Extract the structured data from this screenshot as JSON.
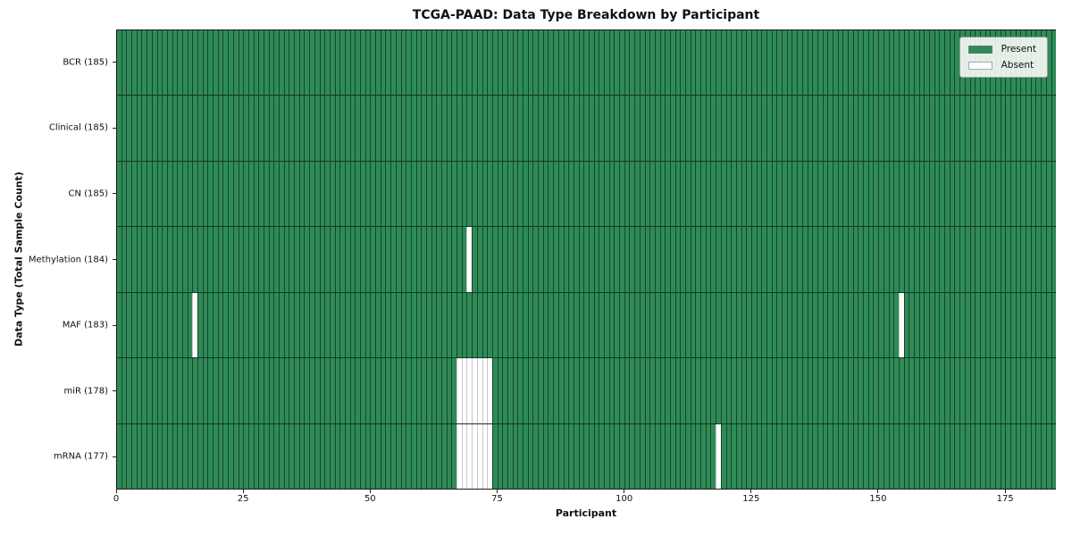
{
  "chart_data": {
    "type": "heatmap",
    "title": "TCGA-PAAD: Data Type Breakdown by Participant",
    "xlabel": "Participant",
    "ylabel": "Data Type (Total Sample Count)",
    "n_participants": 185,
    "xlim": [
      0,
      185
    ],
    "x_ticks": [
      0,
      25,
      50,
      75,
      100,
      125,
      150,
      175
    ],
    "grid": false,
    "legend": {
      "position": "upper-right",
      "entries": [
        {
          "label": "Present",
          "color": "#2e8b57"
        },
        {
          "label": "Absent",
          "color": "#ffffff"
        }
      ]
    },
    "rows": [
      {
        "label": "BCR (185)",
        "name": "BCR",
        "total": 185,
        "absent": []
      },
      {
        "label": "Clinical (185)",
        "name": "Clinical",
        "total": 185,
        "absent": []
      },
      {
        "label": "CN (185)",
        "name": "CN",
        "total": 185,
        "absent": []
      },
      {
        "label": "Methylation (184)",
        "name": "Methylation",
        "total": 184,
        "absent": [
          69
        ]
      },
      {
        "label": "MAF (183)",
        "name": "MAF",
        "total": 183,
        "absent": [
          15,
          154
        ]
      },
      {
        "label": "miR (178)",
        "name": "miR",
        "total": 178,
        "absent": [
          67,
          68,
          69,
          70,
          71,
          72,
          73
        ]
      },
      {
        "label": "mRNA (177)",
        "name": "mRNA",
        "total": 177,
        "absent": [
          67,
          68,
          69,
          70,
          71,
          72,
          73,
          118
        ]
      }
    ],
    "colors": {
      "present": "#2e8b57",
      "absent": "#ffffff",
      "bar_edge_on_present": "rgba(0,0,0,0.5)",
      "bar_edge_on_absent": "#c8c8c8",
      "row_separator": "rgba(0,0,0,0.6)",
      "spine": "#1a1a1a",
      "legend_bg": "rgba(253,254,253,0.88)",
      "legend_border": "#9a9a9a",
      "text": "#111111"
    }
  }
}
